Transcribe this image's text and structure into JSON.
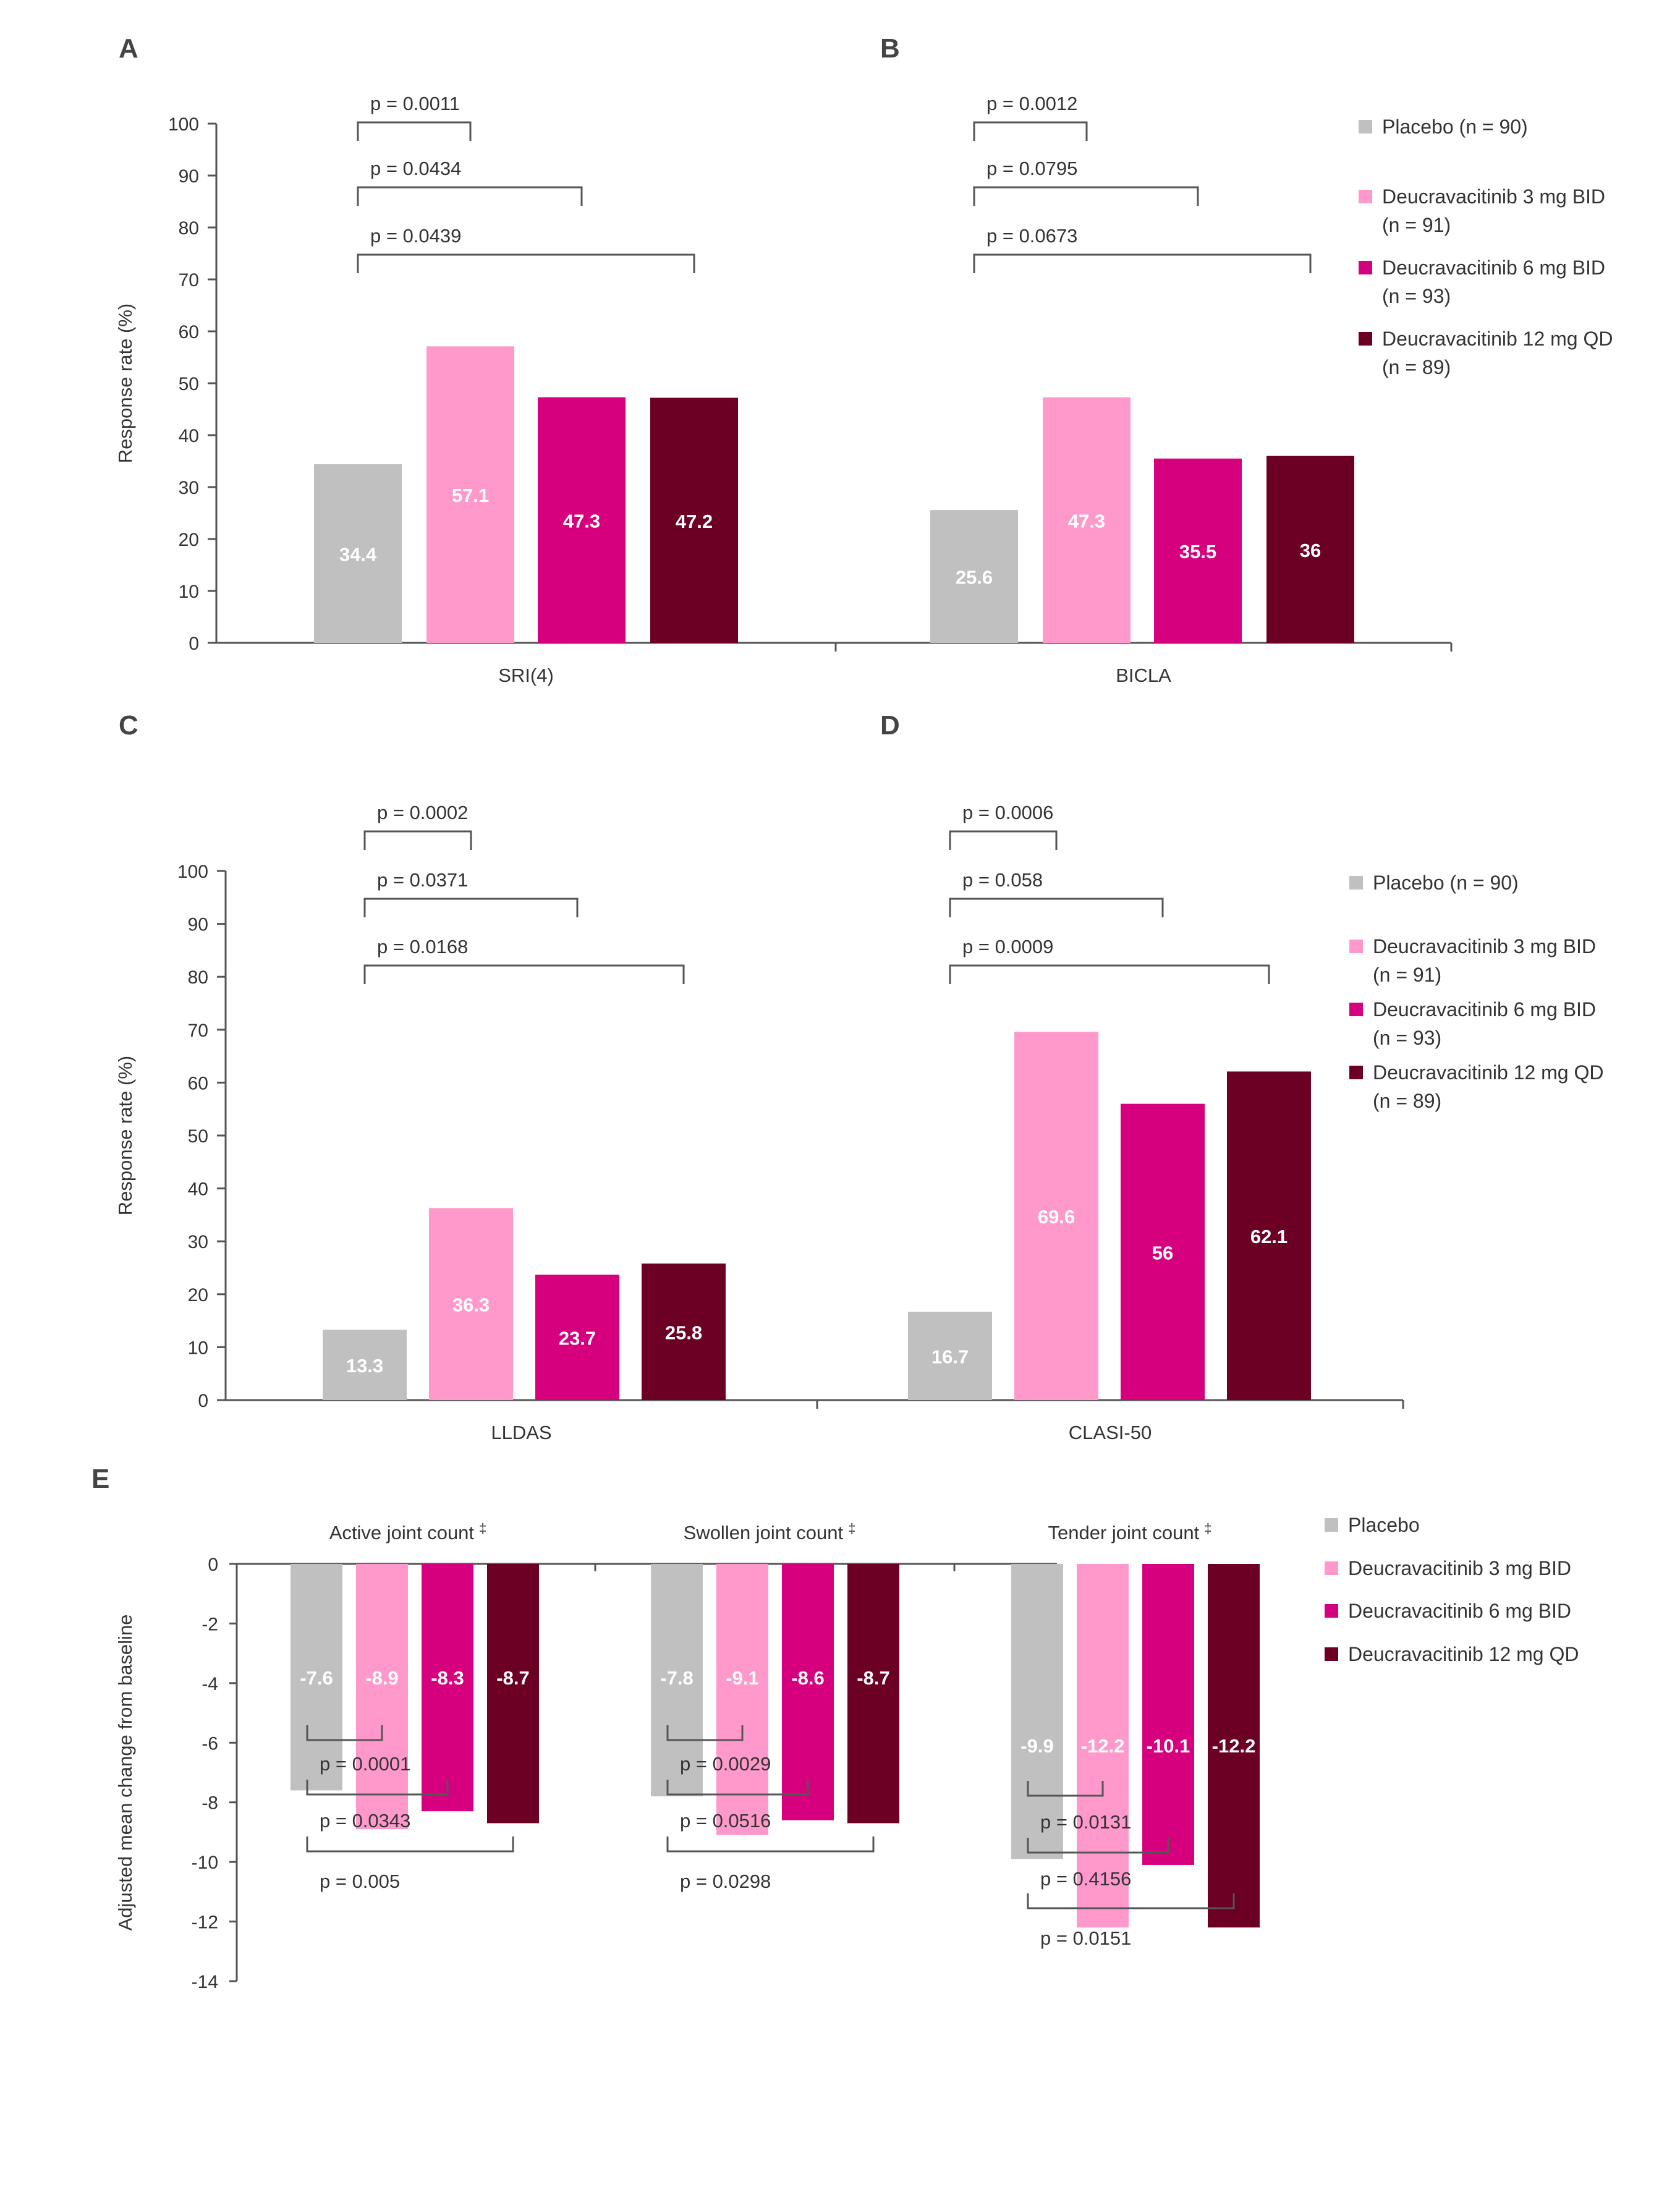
{
  "colors": {
    "placebo": "#c0c0c0",
    "deuc_3mg_bid": "#ff99cc",
    "deuc_6mg_bid": "#d6007e",
    "deuc_12mg_qd": "#6b0024",
    "axis": "#555555"
  },
  "legend_AB": [
    [
      "Placebo (n = 90)"
    ],
    [
      "Deucravacitinib 3 mg BID",
      "(n = 91)"
    ],
    [
      "Deucravacitinib 6 mg BID",
      "(n = 93)"
    ],
    [
      "Deucravacitinib 12 mg QD",
      "(n = 89)"
    ]
  ],
  "legend_CD": [
    [
      "Placebo (n = 90)"
    ],
    [
      "Deucravacitinib 3 mg BID",
      "(n = 91)"
    ],
    [
      "Deucravacitinib 6 mg BID",
      "(n = 93)"
    ],
    [
      "Deucravacitinib 12 mg QD",
      "(n = 89)"
    ]
  ],
  "legend_E": [
    [
      "Placebo"
    ],
    [
      "Deucravacitinib 3 mg BID"
    ],
    [
      "Deucravacitinib 6 mg BID"
    ],
    [
      "Deucravacitinib 12 mg QD"
    ]
  ],
  "chart_data": [
    {
      "panel": "A",
      "type": "bar",
      "ylabel": "Response rate (%)",
      "ylim": [
        0,
        100
      ],
      "yticks": [
        0,
        10,
        20,
        30,
        40,
        50,
        60,
        70,
        80,
        90,
        100
      ],
      "category": "SRI(4)",
      "series_values": [
        34.4,
        57.1,
        47.3,
        47.2
      ],
      "value_labels": [
        "34.4",
        "57.1",
        "47.3",
        "47.2"
      ],
      "pvalues": [
        "p = 0.0011",
        "p = 0.0434",
        "p = 0.0439"
      ]
    },
    {
      "panel": "B",
      "type": "bar",
      "ylim": [
        0,
        100
      ],
      "category": "BICLA",
      "series_values": [
        25.6,
        47.3,
        35.5,
        36
      ],
      "value_labels": [
        "25.6",
        "47.3",
        "35.5",
        "36"
      ],
      "pvalues": [
        "p = 0.0012",
        "p = 0.0795",
        "p = 0.0673"
      ]
    },
    {
      "panel": "C",
      "type": "bar",
      "ylabel": "Response rate (%)",
      "ylim": [
        0,
        100
      ],
      "yticks": [
        0,
        10,
        20,
        30,
        40,
        50,
        60,
        70,
        80,
        90,
        100
      ],
      "category": "LLDAS",
      "series_values": [
        13.3,
        36.3,
        23.7,
        25.8
      ],
      "value_labels": [
        "13.3",
        "36.3",
        "23.7",
        "25.8"
      ],
      "pvalues": [
        "p = 0.0002",
        "p = 0.0371",
        "p = 0.0168"
      ]
    },
    {
      "panel": "D",
      "type": "bar",
      "ylim": [
        0,
        100
      ],
      "category": "CLASI-50",
      "series_values": [
        16.7,
        69.6,
        56,
        62.1
      ],
      "value_labels": [
        "16.7",
        "69.6",
        "56",
        "62.1"
      ],
      "pvalues": [
        "p = 0.0006",
        "p = 0.058",
        "p = 0.0009"
      ]
    },
    {
      "panel": "E",
      "type": "bar",
      "ylabel": "Adjusted mean change from baseline",
      "ylim": [
        -14,
        0
      ],
      "yticks": [
        0,
        -2,
        -4,
        -6,
        -8,
        -10,
        -12,
        -14
      ],
      "groups": [
        {
          "category": "Active joint count",
          "dagger": "‡",
          "values": [
            -7.6,
            -8.9,
            -8.3,
            -8.7
          ],
          "value_labels": [
            "-7.6",
            "-8.9",
            "-8.3",
            "-8.7"
          ],
          "pvalues": [
            "p = 0.0001",
            "p = 0.0343",
            "p = 0.005"
          ]
        },
        {
          "category": "Swollen joint count",
          "dagger": "‡",
          "values": [
            -7.8,
            -9.1,
            -8.6,
            -8.7
          ],
          "value_labels": [
            "-7.8",
            "-9.1",
            "-8.6",
            "-8.7"
          ],
          "pvalues": [
            "p = 0.0029",
            "p = 0.0516",
            "p = 0.0298"
          ]
        },
        {
          "category": "Tender joint count",
          "dagger": "‡",
          "values": [
            -9.9,
            -12.2,
            -10.1,
            -12.2
          ],
          "value_labels": [
            "-9.9",
            "-12.2",
            "-10.1",
            "-12.2"
          ],
          "pvalues": [
            "p = 0.0131",
            "p = 0.4156",
            "p = 0.0151"
          ]
        }
      ]
    }
  ],
  "panel_letters": [
    "A",
    "B",
    "C",
    "D",
    "E"
  ]
}
